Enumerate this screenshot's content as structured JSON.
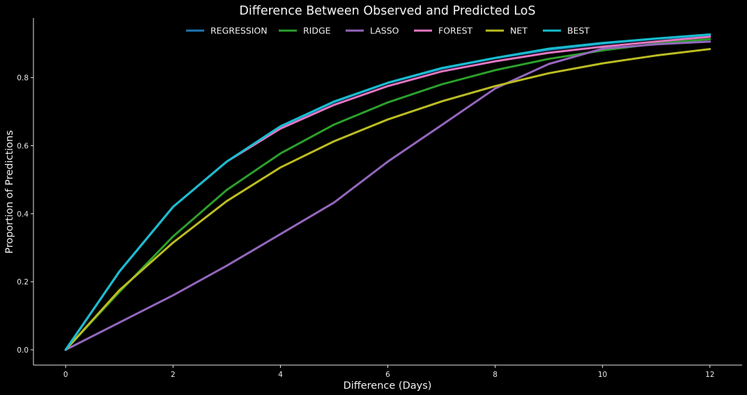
{
  "chart_data": {
    "type": "line",
    "title": "Difference Between Observed and Predicted LoS",
    "xlabel": "Difference (Days)",
    "ylabel": "Proportion of Predictions",
    "xlim": [
      -0.6,
      12.6
    ],
    "ylim": [
      -0.045,
      0.975
    ],
    "x_ticks": [
      0,
      2,
      4,
      6,
      8,
      10,
      12
    ],
    "y_ticks": [
      0.0,
      0.2,
      0.4,
      0.6,
      0.8
    ],
    "y_tick_labels": [
      "0.0",
      "0.2",
      "0.4",
      "0.6",
      "0.8"
    ],
    "grid": false,
    "legend_position": "top-center",
    "x": [
      0,
      1,
      2,
      3,
      4,
      5,
      6,
      7,
      8,
      9,
      10,
      11,
      12
    ],
    "series": [
      {
        "name": "REGRESSION",
        "color": "#1f77b4",
        "values": [
          0,
          0.23,
          0.42,
          0.553,
          0.655,
          0.728,
          0.784,
          0.826,
          0.857,
          0.882,
          0.9,
          0.914,
          0.924
        ]
      },
      {
        "name": "RIDGE",
        "color": "#2ca02c",
        "values": [
          0,
          0.17,
          0.333,
          0.47,
          0.577,
          0.662,
          0.727,
          0.78,
          0.822,
          0.855,
          0.88,
          0.9,
          0.913
        ]
      },
      {
        "name": "LASSO",
        "color": "#9467bd",
        "values": [
          0,
          0.08,
          0.16,
          0.247,
          0.34,
          0.433,
          0.553,
          0.66,
          0.768,
          0.84,
          0.885,
          0.898,
          0.906
        ]
      },
      {
        "name": "FOREST",
        "color": "#e377c2",
        "values": [
          0,
          0.23,
          0.42,
          0.553,
          0.65,
          0.72,
          0.775,
          0.818,
          0.848,
          0.873,
          0.891,
          0.906,
          0.92
        ]
      },
      {
        "name": "NET",
        "color": "#bcbd22",
        "values": [
          0,
          0.175,
          0.315,
          0.437,
          0.536,
          0.613,
          0.677,
          0.73,
          0.775,
          0.813,
          0.842,
          0.865,
          0.884
        ]
      },
      {
        "name": "BEST",
        "color": "#17becf",
        "values": [
          0,
          0.23,
          0.42,
          0.553,
          0.657,
          0.73,
          0.785,
          0.828,
          0.858,
          0.885,
          0.902,
          0.915,
          0.927
        ]
      }
    ]
  }
}
